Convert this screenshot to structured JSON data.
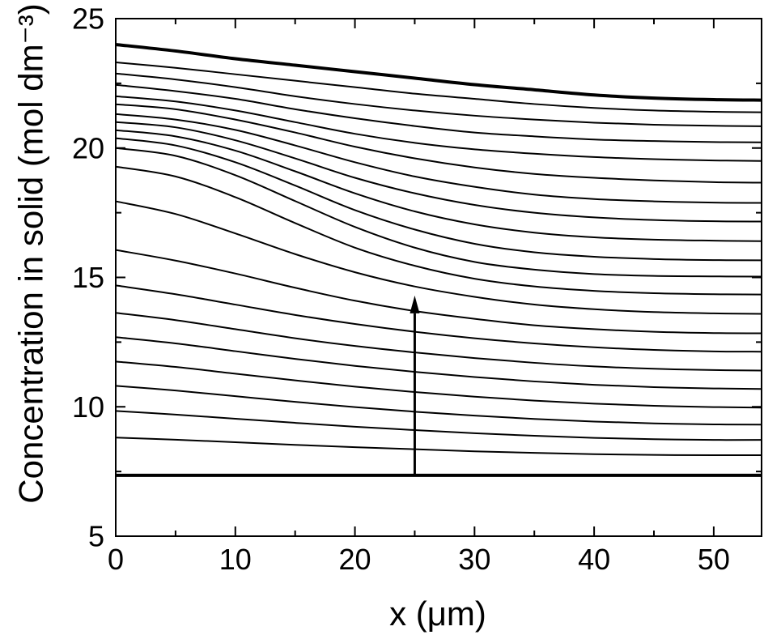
{
  "chart_data": {
    "type": "line",
    "xlabel": "x (μm)",
    "ylabel": "Concentration in solid (mol dm⁻³)",
    "xlim": [
      0,
      54
    ],
    "ylim": [
      5,
      25
    ],
    "xticks": [
      "0",
      "10",
      "20",
      "30",
      "40",
      "50"
    ],
    "yticks": [
      "5",
      "10",
      "15",
      "20",
      "25"
    ],
    "x_minor_step": 5,
    "y_minor_step": 2.5,
    "tick_direction": "in",
    "grid": false,
    "legend": "none",
    "line_color": "#000000",
    "x": [
      0,
      5,
      10,
      15,
      20,
      25,
      30,
      35,
      40,
      45,
      50,
      54
    ],
    "series": [
      {
        "line_style": "bold",
        "values": [
          7.35,
          7.35,
          7.35,
          7.35,
          7.35,
          7.35,
          7.35,
          7.35,
          7.35,
          7.35,
          7.35,
          7.35
        ]
      },
      {
        "line_style": "normal",
        "values": [
          8.81,
          8.73,
          8.63,
          8.53,
          8.44,
          8.36,
          8.28,
          8.22,
          8.17,
          8.14,
          8.13,
          8.13
        ]
      },
      {
        "line_style": "normal",
        "values": [
          9.84,
          9.7,
          9.54,
          9.38,
          9.23,
          9.1,
          8.98,
          8.88,
          8.8,
          8.75,
          8.72,
          8.72
        ]
      },
      {
        "line_style": "normal",
        "values": [
          10.81,
          10.63,
          10.41,
          10.19,
          9.99,
          9.81,
          9.66,
          9.53,
          9.43,
          9.36,
          9.32,
          9.31
        ]
      },
      {
        "line_style": "normal",
        "values": [
          11.75,
          11.54,
          11.28,
          11.02,
          10.78,
          10.57,
          10.39,
          10.24,
          10.12,
          10.04,
          9.99,
          9.97
        ]
      },
      {
        "line_style": "normal",
        "values": [
          12.69,
          12.45,
          12.15,
          11.85,
          11.58,
          11.35,
          11.15,
          10.98,
          10.85,
          10.76,
          10.71,
          10.69
        ]
      },
      {
        "line_style": "normal",
        "values": [
          13.63,
          13.35,
          13.0,
          12.65,
          12.35,
          12.1,
          11.88,
          11.7,
          11.56,
          11.47,
          11.42,
          11.4
        ]
      },
      {
        "line_style": "normal",
        "values": [
          14.69,
          14.35,
          13.95,
          13.55,
          13.2,
          12.9,
          12.65,
          12.45,
          12.3,
          12.2,
          12.14,
          12.13
        ]
      },
      {
        "line_style": "normal",
        "values": [
          16.06,
          15.65,
          15.15,
          14.6,
          14.1,
          13.7,
          13.4,
          13.15,
          13.0,
          12.9,
          12.85,
          12.84
        ]
      },
      {
        "line_style": "normal",
        "values": [
          17.94,
          17.45,
          16.7,
          15.9,
          15.2,
          14.65,
          14.25,
          13.95,
          13.77,
          13.66,
          13.61,
          13.59
        ]
      },
      {
        "line_style": "normal",
        "values": [
          19.28,
          18.9,
          18.1,
          17.1,
          16.15,
          15.45,
          14.95,
          14.65,
          14.48,
          14.39,
          14.35,
          14.34
        ]
      },
      {
        "line_style": "normal",
        "values": [
          20.0,
          19.7,
          18.95,
          17.95,
          16.95,
          16.15,
          15.6,
          15.3,
          15.13,
          15.06,
          15.04,
          15.03
        ]
      },
      {
        "line_style": "normal",
        "values": [
          20.38,
          20.1,
          19.45,
          18.55,
          17.6,
          16.85,
          16.3,
          15.97,
          15.8,
          15.71,
          15.67,
          15.66
        ]
      },
      {
        "line_style": "normal",
        "values": [
          20.69,
          20.45,
          19.9,
          19.1,
          18.25,
          17.55,
          17.05,
          16.73,
          16.55,
          16.46,
          16.42,
          16.4
        ]
      },
      {
        "line_style": "normal",
        "values": [
          21.0,
          20.8,
          20.3,
          19.6,
          18.85,
          18.25,
          17.8,
          17.5,
          17.32,
          17.22,
          17.17,
          17.16
        ]
      },
      {
        "line_style": "normal",
        "values": [
          21.31,
          21.1,
          20.7,
          20.1,
          19.45,
          18.9,
          18.5,
          18.2,
          18.03,
          17.94,
          17.89,
          17.88
        ]
      },
      {
        "line_style": "normal",
        "values": [
          21.69,
          21.5,
          21.1,
          20.6,
          20.05,
          19.6,
          19.25,
          19.0,
          18.85,
          18.75,
          18.68,
          18.66
        ]
      },
      {
        "line_style": "normal",
        "values": [
          22.0,
          21.8,
          21.45,
          21.0,
          20.55,
          20.2,
          19.95,
          19.78,
          19.65,
          19.57,
          19.52,
          19.5
        ]
      },
      {
        "line_style": "normal",
        "values": [
          22.44,
          22.2,
          21.9,
          21.5,
          21.15,
          20.85,
          20.6,
          20.45,
          20.33,
          20.27,
          20.23,
          20.22
        ]
      },
      {
        "line_style": "normal",
        "values": [
          22.88,
          22.65,
          22.35,
          22.0,
          21.7,
          21.45,
          21.25,
          21.1,
          20.98,
          20.9,
          20.86,
          20.84
        ]
      },
      {
        "line_style": "normal",
        "values": [
          23.31,
          23.1,
          22.85,
          22.6,
          22.35,
          22.1,
          21.9,
          21.7,
          21.55,
          21.45,
          21.4,
          21.38
        ]
      },
      {
        "line_style": "bold",
        "values": [
          24.0,
          23.75,
          23.45,
          23.2,
          22.95,
          22.7,
          22.45,
          22.25,
          22.05,
          21.93,
          21.87,
          21.85
        ]
      }
    ],
    "annotations": [
      {
        "type": "arrow",
        "x": 25,
        "y_from": 7.35,
        "y_to": 14.3,
        "direction": "up"
      }
    ]
  }
}
